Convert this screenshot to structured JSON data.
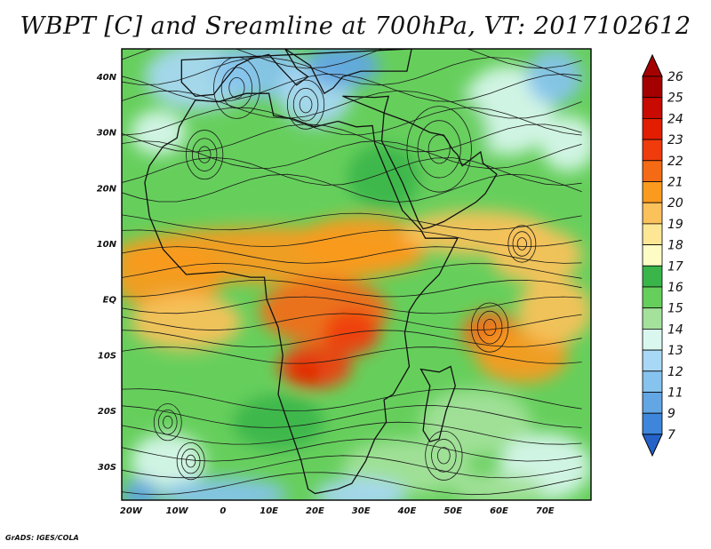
{
  "title": "WBPT [C] and Sreamline at 700hPa, VT: 2017102612",
  "footer": "GrADS: IGES/COLA",
  "map": {
    "lon_range": [
      -22,
      80
    ],
    "lat_range": [
      -36,
      45
    ],
    "lon_ticks": [
      {
        "value": -20,
        "label": "20W"
      },
      {
        "value": -10,
        "label": "10W"
      },
      {
        "value": 0,
        "label": "0"
      },
      {
        "value": 10,
        "label": "10E"
      },
      {
        "value": 20,
        "label": "20E"
      },
      {
        "value": 30,
        "label": "30E"
      },
      {
        "value": 40,
        "label": "40E"
      },
      {
        "value": 50,
        "label": "50E"
      },
      {
        "value": 60,
        "label": "60E"
      },
      {
        "value": 70,
        "label": "70E"
      }
    ],
    "lat_ticks": [
      {
        "value": 40,
        "label": "40N"
      },
      {
        "value": 30,
        "label": "30N"
      },
      {
        "value": 20,
        "label": "20N"
      },
      {
        "value": 10,
        "label": "10N"
      },
      {
        "value": 0,
        "label": "EQ"
      },
      {
        "value": -10,
        "label": "10S"
      },
      {
        "value": -20,
        "label": "20S"
      },
      {
        "value": -30,
        "label": "30S"
      }
    ],
    "colors": {
      "frame": "#000000",
      "coastline": "#111111",
      "streamline": "#1a1a1a"
    }
  },
  "colorbar": {
    "bins": [
      {
        "label": "26",
        "color": "#a50000"
      },
      {
        "label": "25",
        "color": "#c80a00"
      },
      {
        "label": "24",
        "color": "#e21d00"
      },
      {
        "label": "23",
        "color": "#f03c0c"
      },
      {
        "label": "22",
        "color": "#f56a14"
      },
      {
        "label": "21",
        "color": "#fa9a1e"
      },
      {
        "label": "20",
        "color": "#fbc15a"
      },
      {
        "label": "19",
        "color": "#fde795"
      },
      {
        "label": "18",
        "color": "#fdfcc5"
      },
      {
        "label": "17",
        "color": "#39b54a"
      },
      {
        "label": "16",
        "color": "#66cf5c"
      },
      {
        "label": "15",
        "color": "#a4e29b"
      },
      {
        "label": "14",
        "color": "#d9f7ef"
      },
      {
        "label": "13",
        "color": "#a8d8f5"
      },
      {
        "label": "12",
        "color": "#86c3ee"
      },
      {
        "label": "11",
        "color": "#62a6e4"
      },
      {
        "label": "9",
        "color": "#3d86db"
      },
      {
        "label": "7",
        "color": "#2462c8"
      }
    ]
  }
}
